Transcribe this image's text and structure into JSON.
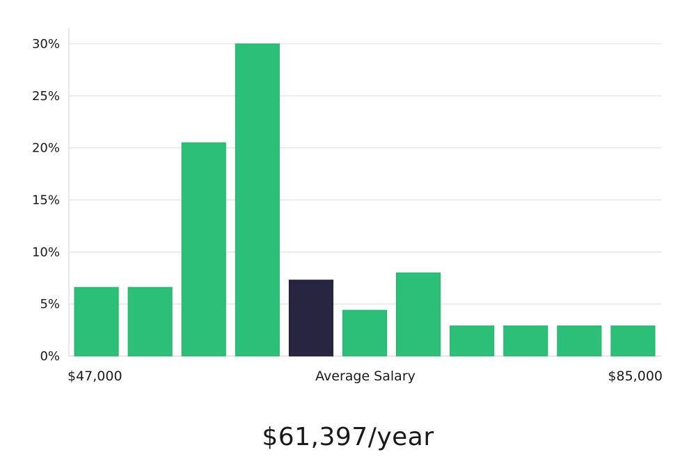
{
  "chart_data": {
    "type": "bar",
    "categories": [
      "",
      "",
      "",
      "",
      "",
      "",
      "",
      "",
      "",
      "",
      ""
    ],
    "values": [
      6.6,
      6.6,
      20.5,
      30.0,
      7.3,
      4.4,
      8.0,
      2.9,
      2.9,
      2.9,
      2.9
    ],
    "highlight_index": 4,
    "ylim": [
      0,
      30
    ],
    "yticks": [
      0,
      5,
      10,
      15,
      20,
      25,
      30
    ],
    "ytick_labels": [
      "0%",
      "5%",
      "10%",
      "15%",
      "20%",
      "25%",
      "30%"
    ],
    "x_labels": {
      "min": "$47,000",
      "center": "Average Salary",
      "max": "$85,000"
    },
    "grid": true,
    "colors": {
      "bar": "#2bbf77",
      "highlight": "#27253f",
      "grid": "#dcdcdc",
      "axis": "#cccccc"
    }
  },
  "summary": {
    "salary": "$61,397/year"
  }
}
